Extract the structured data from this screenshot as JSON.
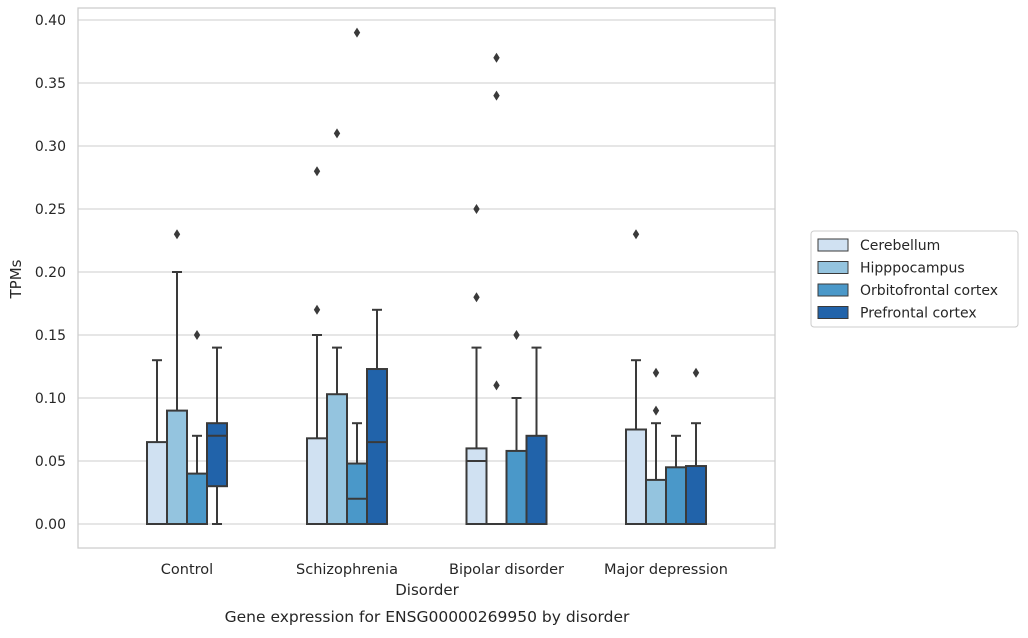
{
  "chart_data": {
    "type": "box",
    "title": "",
    "caption": "Gene expression for ENSG00000269950 by disorder",
    "xlabel": "Disorder",
    "ylabel": "TPMs",
    "ylim": [
      -0.018,
      0.41
    ],
    "yticks": [
      0.0,
      0.05,
      0.1,
      0.15,
      0.2,
      0.25,
      0.3,
      0.35,
      0.4
    ],
    "ytick_labels": [
      "0.00",
      "0.05",
      "0.10",
      "0.15",
      "0.20",
      "0.25",
      "0.30",
      "0.35",
      "0.40"
    ],
    "categories": [
      "Control",
      "Schizophrenia",
      "Bipolar disorder",
      "Major depression"
    ],
    "grid": true,
    "legend_position": "right",
    "colors": {
      "Cerebellum": "#d0e1f2",
      "Hipppocampus": "#94c4df",
      "Orbitofrontal cortex": "#4a98c9",
      "Prefrontal cortex": "#2163aa"
    },
    "series": [
      {
        "name": "Cerebellum",
        "boxes": [
          {
            "q1": 0.0,
            "median": 0.0,
            "q3": 0.065,
            "whisker_low": 0.0,
            "whisker_high": 0.13,
            "outliers": []
          },
          {
            "q1": 0.0,
            "median": 0.0,
            "q3": 0.068,
            "whisker_low": 0.0,
            "whisker_high": 0.15,
            "outliers": [
              0.17,
              0.28
            ]
          },
          {
            "q1": 0.0,
            "median": 0.05,
            "q3": 0.06,
            "whisker_low": 0.0,
            "whisker_high": 0.14,
            "outliers": [
              0.18,
              0.25
            ]
          },
          {
            "q1": 0.0,
            "median": 0.0,
            "q3": 0.075,
            "whisker_low": 0.0,
            "whisker_high": 0.13,
            "outliers": [
              0.23
            ]
          }
        ]
      },
      {
        "name": "Hipppocampus",
        "boxes": [
          {
            "q1": 0.0,
            "median": 0.0,
            "q3": 0.09,
            "whisker_low": 0.0,
            "whisker_high": 0.2,
            "outliers": [
              0.23
            ]
          },
          {
            "q1": 0.0,
            "median": 0.0,
            "q3": 0.103,
            "whisker_low": 0.0,
            "whisker_high": 0.14,
            "outliers": [
              0.31
            ]
          },
          {
            "q1": 0.0,
            "median": 0.0,
            "q3": 0.0,
            "whisker_low": 0.0,
            "whisker_high": 0.0,
            "outliers": [
              0.11,
              0.34,
              0.37
            ]
          },
          {
            "q1": 0.0,
            "median": 0.0,
            "q3": 0.035,
            "whisker_low": 0.0,
            "whisker_high": 0.08,
            "outliers": [
              0.09,
              0.12
            ]
          }
        ]
      },
      {
        "name": "Orbitofrontal cortex",
        "boxes": [
          {
            "q1": 0.0,
            "median": 0.0,
            "q3": 0.04,
            "whisker_low": 0.0,
            "whisker_high": 0.07,
            "outliers": [
              0.15
            ]
          },
          {
            "q1": 0.0,
            "median": 0.02,
            "q3": 0.048,
            "whisker_low": 0.0,
            "whisker_high": 0.08,
            "outliers": [
              0.39
            ]
          },
          {
            "q1": 0.0,
            "median": 0.0,
            "q3": 0.058,
            "whisker_low": 0.0,
            "whisker_high": 0.1,
            "outliers": [
              0.15
            ]
          },
          {
            "q1": 0.0,
            "median": 0.0,
            "q3": 0.045,
            "whisker_low": 0.0,
            "whisker_high": 0.07,
            "outliers": []
          }
        ]
      },
      {
        "name": "Prefrontal cortex",
        "boxes": [
          {
            "q1": 0.03,
            "median": 0.07,
            "q3": 0.08,
            "whisker_low": 0.0,
            "whisker_high": 0.14,
            "outliers": []
          },
          {
            "q1": 0.0,
            "median": 0.065,
            "q3": 0.123,
            "whisker_low": 0.0,
            "whisker_high": 0.17,
            "outliers": []
          },
          {
            "q1": 0.0,
            "median": 0.0,
            "q3": 0.07,
            "whisker_low": 0.0,
            "whisker_high": 0.14,
            "outliers": []
          },
          {
            "q1": 0.0,
            "median": 0.0,
            "q3": 0.046,
            "whisker_low": 0.0,
            "whisker_high": 0.08,
            "outliers": [
              0.12
            ]
          }
        ]
      }
    ]
  }
}
